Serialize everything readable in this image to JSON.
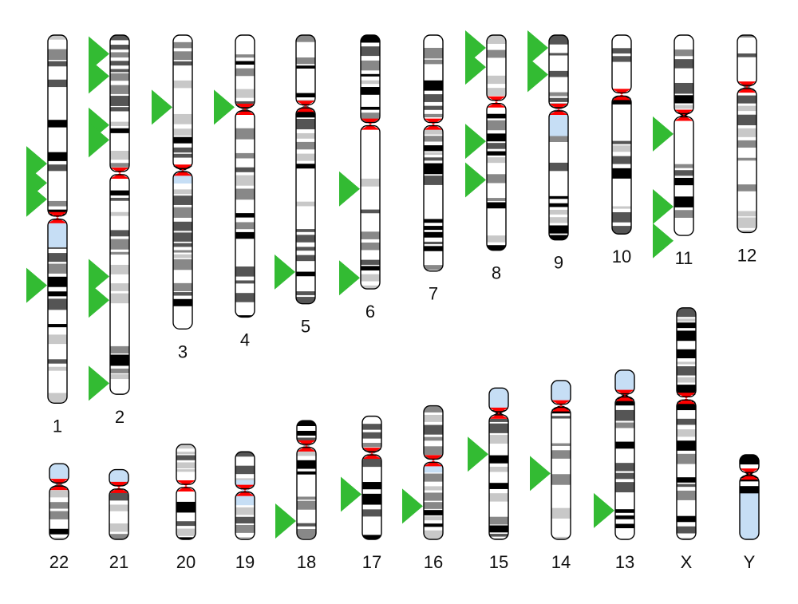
{
  "colors": {
    "outline": "#000000",
    "gpos100": "#000000",
    "gpos75": "#555555",
    "gpos50": "#888888",
    "gpos25": "#c8c8c8",
    "gneg": "#ffffff",
    "heterochromatin": "#c6def5",
    "centromere": "#ff0000",
    "marker": "#33bb33"
  },
  "chromosomes": [
    {
      "label": "1",
      "length": 248,
      "centromere": 123,
      "het": [
        123,
        143
      ],
      "markers": [
        78,
        91,
        102,
        160
      ]
    },
    {
      "label": "2",
      "length": 242,
      "centromere": 93,
      "het": null,
      "markers": [
        4,
        19,
        52,
        62,
        154,
        170,
        226
      ]
    },
    {
      "label": "3",
      "length": 198,
      "centromere": 91,
      "het": [
        91,
        100
      ],
      "markers": [
        40
      ]
    },
    {
      "label": "4",
      "length": 190,
      "centromere": 50,
      "het": null,
      "markers": [
        40
      ]
    },
    {
      "label": "5",
      "length": 181,
      "centromere": 48,
      "het": null,
      "markers": [
        151
      ]
    },
    {
      "label": "6",
      "length": 171,
      "centromere": 60,
      "het": null,
      "markers": [
        95,
        155
      ]
    },
    {
      "label": "7",
      "length": 159,
      "centromere": 60,
      "het": null,
      "markers": []
    },
    {
      "label": "8",
      "length": 145,
      "centromere": 45,
      "het": null,
      "markers": [
        0,
        13,
        63,
        89
      ]
    },
    {
      "label": "9",
      "length": 138,
      "centromere": 50,
      "het": [
        50,
        68
      ],
      "markers": [
        0,
        18
      ]
    },
    {
      "label": "10",
      "length": 134,
      "centromere": 40,
      "het": null,
      "markers": []
    },
    {
      "label": "11",
      "length": 135,
      "centromere": 54,
      "het": null,
      "markers": [
        58,
        107,
        130
      ]
    },
    {
      "label": "12",
      "length": 133,
      "centromere": 35,
      "het": null,
      "markers": []
    },
    {
      "label": "22",
      "length": 51,
      "centromere": 14,
      "het": [
        0,
        10
      ],
      "markers": []
    },
    {
      "label": "21",
      "length": 47,
      "centromere": 12,
      "het": [
        0,
        9
      ],
      "markers": []
    },
    {
      "label": "20",
      "length": 64,
      "centromere": 28,
      "het": null,
      "markers": []
    },
    {
      "label": "19",
      "length": 59,
      "centromere": 26,
      "het": [
        19,
        36
      ],
      "markers": []
    },
    {
      "label": "18",
      "length": 80,
      "centromere": 17,
      "het": null,
      "markers": [
        59
      ]
    },
    {
      "label": "17",
      "length": 83,
      "centromere": 25,
      "het": null,
      "markers": [
        44
      ]
    },
    {
      "label": "16",
      "length": 90,
      "centromere": 37,
      "het": [
        37,
        45
      ],
      "markers": [
        59
      ]
    },
    {
      "label": "15",
      "length": 102,
      "centromere": 17,
      "het": [
        0,
        14
      ],
      "markers": [
        36
      ]
    },
    {
      "label": "14",
      "length": 107,
      "centromere": 17,
      "het": [
        0,
        14
      ],
      "markers": [
        54
      ]
    },
    {
      "label": "13",
      "length": 114,
      "centromere": 17,
      "het": [
        0,
        14
      ],
      "markers": [
        86
      ]
    },
    {
      "label": "X",
      "length": 156,
      "centromere": 61,
      "het": null,
      "markers": []
    },
    {
      "label": "Y",
      "length": 57,
      "centromere": 13,
      "het": [
        26,
        57
      ],
      "markers": []
    }
  ]
}
